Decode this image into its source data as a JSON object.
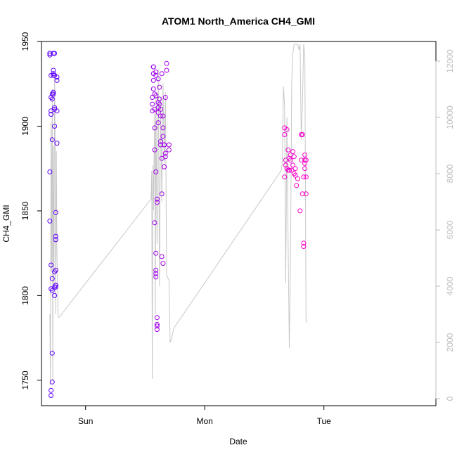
{
  "chart_data": {
    "type": "scatter",
    "title": "ATOM1 North_America CH4_GMI",
    "xlabel": "Date",
    "ylabel": "CH4_GMI",
    "x_tick_labels": [
      "Sun",
      "Mon",
      "Tue"
    ],
    "x_ticks_days": [
      1,
      2,
      3
    ],
    "xlim_days": [
      0.63,
      3.94
    ],
    "ylim": [
      1735,
      1950
    ],
    "y_ticks": [
      1750,
      1800,
      1850,
      1900,
      1950
    ],
    "y2lim": [
      -250,
      12700
    ],
    "y2_ticks": [
      0,
      2000,
      4000,
      6000,
      8000,
      10000,
      12000
    ],
    "grid": false,
    "legend": "none",
    "colors": {
      "start": "#5b00ff",
      "end": "#ff00c8",
      "secondary_line": "#c8c8c8"
    },
    "scatter_series": {
      "name": "",
      "x_days": [
        0.7,
        0.7,
        0.7,
        0.71,
        0.71,
        0.71,
        0.7,
        0.7,
        0.71,
        0.72,
        0.71,
        0.72,
        0.72,
        0.72,
        0.71,
        0.71,
        0.72,
        0.71,
        0.72,
        0.72,
        0.73,
        0.73,
        0.73,
        0.73,
        0.73,
        0.74,
        0.73,
        0.74,
        0.74,
        0.74,
        0.74,
        0.75,
        0.75,
        0.75,
        0.75,
        0.74,
        0.74,
        0.74,
        0.75,
        0.75,
        0.75,
        0.76,
        0.76,
        0.76,
        0.76,
        1.56,
        1.56,
        1.56,
        1.57,
        1.57,
        1.57,
        1.57,
        1.57,
        1.58,
        1.58,
        1.58,
        1.59,
        1.58,
        1.58,
        1.59,
        1.59,
        1.59,
        1.59,
        1.59,
        1.59,
        1.59,
        1.6,
        1.6,
        1.6,
        1.6,
        1.6,
        1.6,
        1.61,
        1.61,
        1.61,
        1.61,
        1.61,
        1.62,
        1.62,
        1.62,
        1.63,
        1.63,
        1.63,
        1.63,
        1.64,
        1.64,
        1.64,
        1.64,
        1.65,
        1.65,
        1.65,
        1.65,
        1.66,
        1.66,
        1.66,
        1.66,
        1.66,
        1.67,
        1.67,
        1.67,
        1.68,
        1.68,
        1.7,
        1.7,
        2.67,
        2.67,
        2.67,
        2.68,
        2.68,
        2.69,
        2.69,
        2.7,
        2.7,
        2.71,
        2.71,
        2.72,
        2.72,
        2.73,
        2.74,
        2.74,
        2.75,
        2.75,
        2.76,
        2.76,
        2.77,
        2.78,
        2.8,
        2.81,
        2.81,
        2.82,
        2.82,
        2.83,
        2.83,
        2.83,
        2.84,
        2.84,
        2.84,
        2.84,
        2.85,
        2.85,
        2.85
      ],
      "values": [
        1943,
        1943,
        1942,
        1930,
        1917,
        1907,
        1873,
        1844,
        1818,
        1810,
        1804,
        1803,
        1766,
        1749,
        1744,
        1741,
        1892,
        1909,
        1916,
        1919,
        1919,
        1920,
        1931,
        1933,
        1930,
        1930,
        1943,
        1943,
        1911,
        1910,
        1900,
        1815,
        1806,
        1805,
        1806,
        1800,
        1805,
        1814,
        1849,
        1835,
        1833,
        1909,
        1890,
        1927,
        1929,
        1909,
        1913,
        1917,
        1922,
        1935,
        1935,
        1931,
        1927,
        1919,
        1910,
        1843,
        1873,
        1886,
        1899,
        1825,
        1815,
        1813,
        1811,
        1932,
        1930,
        1918,
        1857,
        1855,
        1787,
        1783,
        1782,
        1780,
        1928,
        1914,
        1911,
        1908,
        1902,
        1916,
        1913,
        1923,
        1906,
        1910,
        1891,
        1889,
        1931,
        1881,
        1860,
        1823,
        1819,
        1894,
        1899,
        1906,
        1889,
        1889,
        1889,
        1876,
        1876,
        1884,
        1917,
        1882,
        1933,
        1937,
        1889,
        1886,
        1870,
        1895,
        1899,
        1880,
        1877,
        1875,
        1898,
        1886,
        1874,
        1881,
        1874,
        1883,
        1880,
        1874,
        1877,
        1885,
        1872,
        1882,
        1875,
        1871,
        1865,
        1869,
        1850,
        1895,
        1880,
        1860,
        1895,
        1831,
        1829,
        1870,
        1883,
        1880,
        1878,
        1875,
        1870,
        1880,
        1860
      ]
    },
    "line_series": {
      "name": "",
      "x_days": [
        0.7,
        0.705,
        0.71,
        0.715,
        0.72,
        0.725,
        0.73,
        0.735,
        0.74,
        0.745,
        0.75,
        0.755,
        0.76,
        0.77,
        0.78,
        1.55,
        1.555,
        1.56,
        1.565,
        1.57,
        1.575,
        1.58,
        1.585,
        1.59,
        1.6,
        1.61,
        1.62,
        1.63,
        1.64,
        1.65,
        1.66,
        1.67,
        1.68,
        1.69,
        1.7,
        1.71,
        1.72,
        1.73,
        1.74,
        2.64,
        2.65,
        2.66,
        2.67,
        2.68,
        2.69,
        2.7,
        2.71,
        2.72,
        2.73,
        2.74,
        2.75,
        2.76,
        2.77,
        2.78,
        2.79,
        2.8,
        2.81,
        2.82,
        2.83,
        2.84,
        2.85,
        2.86
      ],
      "values": [
        3000,
        500,
        9800,
        4500,
        11000,
        600,
        9000,
        4000,
        11500,
        9000,
        3000,
        8800,
        5200,
        2900,
        2900,
        7100,
        8100,
        700,
        8300,
        6700,
        8700,
        10200,
        3000,
        10800,
        5500,
        11700,
        4000,
        10700,
        7000,
        11200,
        8400,
        10900,
        4400,
        4300,
        4200,
        2000,
        2100,
        2300,
        2500,
        8100,
        8300,
        11100,
        10400,
        4100,
        10000,
        5600,
        1800,
        5000,
        11200,
        12300,
        12600,
        12600,
        12600,
        12600,
        12400,
        12600,
        9200,
        10500,
        12600,
        12200,
        2800,
        2700
      ]
    }
  }
}
